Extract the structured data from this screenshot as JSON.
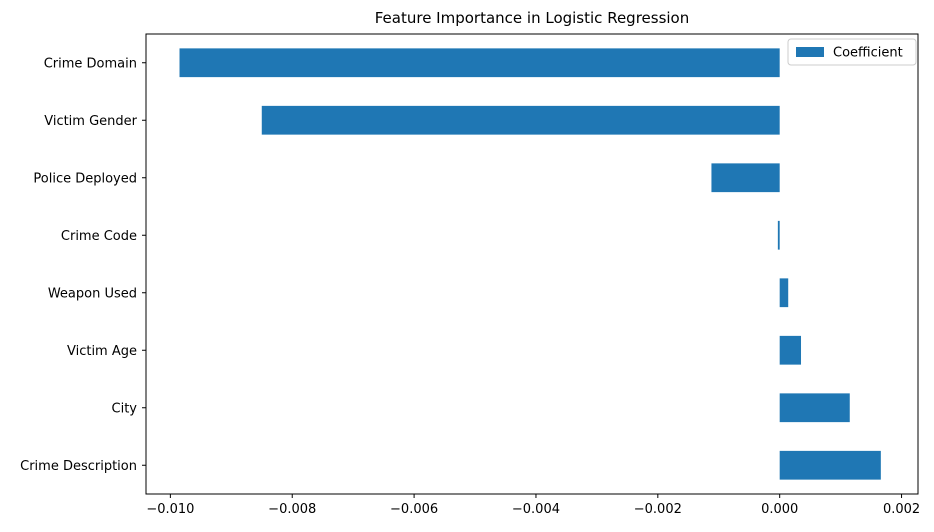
{
  "chart_data": {
    "type": "bar",
    "orientation": "horizontal",
    "title": "Feature Importance in Logistic Regression",
    "xlabel": "",
    "ylabel": "",
    "categories": [
      "Crime Domain",
      "Victim Gender",
      "Police Deployed",
      "Crime Code",
      "Weapon Used",
      "Victim Age",
      "City",
      "Crime Description"
    ],
    "series": [
      {
        "name": "Coefficient",
        "color": "#1f77b4",
        "values": [
          -0.00985,
          -0.0085,
          -0.00112,
          -3e-05,
          0.00014,
          0.00035,
          0.00115,
          0.00166
        ]
      }
    ],
    "xlim": [
      -0.0104,
      0.00227
    ],
    "xticks": [
      -0.01,
      -0.008,
      -0.006,
      -0.004,
      -0.002,
      0.0,
      0.002
    ],
    "xtick_labels": [
      "−0.010",
      "−0.008",
      "−0.006",
      "−0.004",
      "−0.002",
      "0.000",
      "0.002"
    ],
    "grid": false,
    "legend_position": "top-right"
  }
}
